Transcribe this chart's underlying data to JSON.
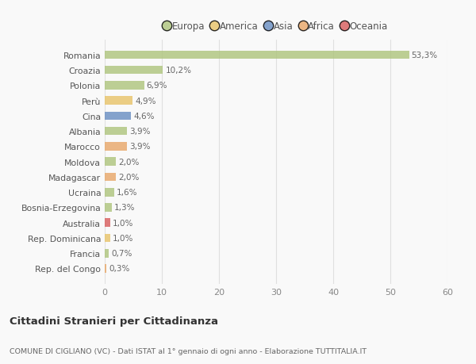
{
  "categories": [
    "Romania",
    "Croazia",
    "Polonia",
    "Perù",
    "Cina",
    "Albania",
    "Marocco",
    "Moldova",
    "Madagascar",
    "Ucraina",
    "Bosnia-Erzegovina",
    "Australia",
    "Rep. Dominicana",
    "Francia",
    "Rep. del Congo"
  ],
  "values": [
    53.3,
    10.2,
    6.9,
    4.9,
    4.6,
    3.9,
    3.9,
    2.0,
    2.0,
    1.6,
    1.3,
    1.0,
    1.0,
    0.7,
    0.3
  ],
  "labels": [
    "53,3%",
    "10,2%",
    "6,9%",
    "4,9%",
    "4,6%",
    "3,9%",
    "3,9%",
    "2,0%",
    "2,0%",
    "1,6%",
    "1,3%",
    "1,0%",
    "1,0%",
    "0,7%",
    "0,3%"
  ],
  "colors": [
    "#afc57e",
    "#afc57e",
    "#afc57e",
    "#e8c46a",
    "#6b8fc2",
    "#afc57e",
    "#e8a86a",
    "#afc57e",
    "#e8a86a",
    "#afc57e",
    "#afc57e",
    "#d95f5f",
    "#e8c46a",
    "#afc57e",
    "#e8a86a"
  ],
  "legend_labels": [
    "Europa",
    "America",
    "Asia",
    "Africa",
    "Oceania"
  ],
  "legend_colors": [
    "#afc57e",
    "#e8c46a",
    "#6b8fc2",
    "#e8a86a",
    "#d95f5f"
  ],
  "title": "Cittadini Stranieri per Cittadinanza",
  "subtitle": "COMUNE DI CIGLIANO (VC) - Dati ISTAT al 1° gennaio di ogni anno - Elaborazione TUTTITALIA.IT",
  "xlim": [
    0,
    60
  ],
  "xticks": [
    0,
    10,
    20,
    30,
    40,
    50,
    60
  ],
  "bg_color": "#f9f9f9",
  "grid_color": "#e0e0e0",
  "bar_alpha": 0.82
}
